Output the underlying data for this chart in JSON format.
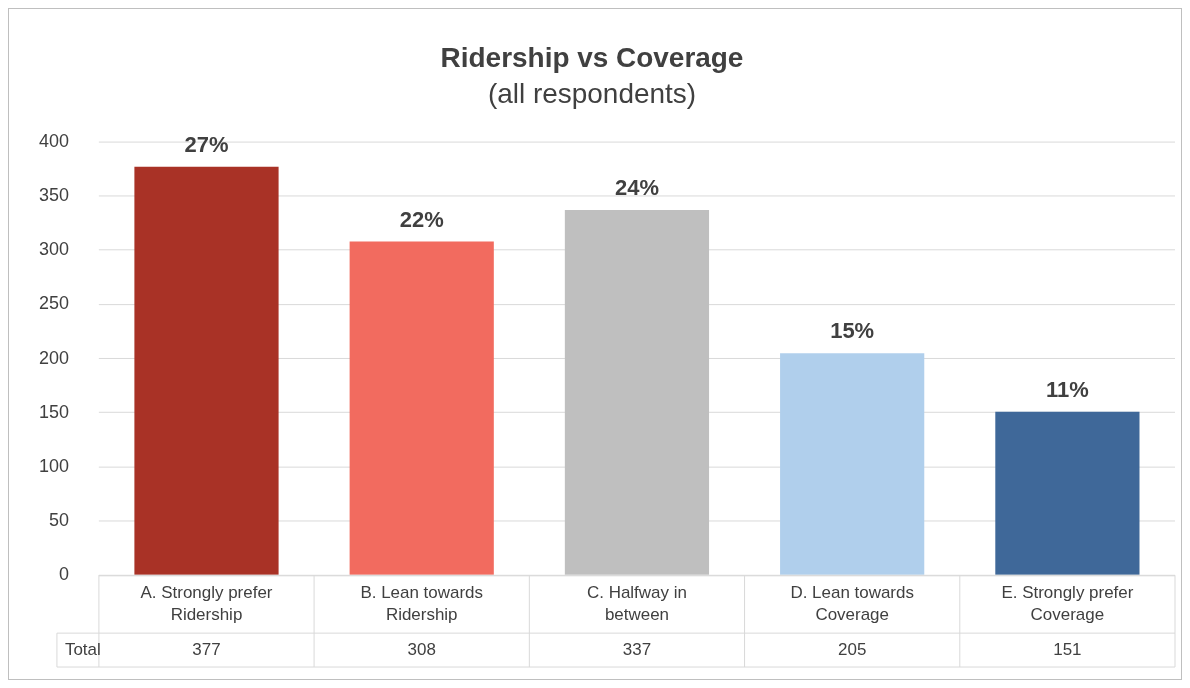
{
  "chart_data": {
    "type": "bar",
    "title": "Ridership vs Coverage",
    "subtitle": "(all respondents)",
    "categories": [
      "A. Strongly prefer Ridership",
      "B. Lean towards Ridership",
      "C. Halfway in between",
      "D. Lean towards Coverage",
      "E. Strongly prefer Coverage"
    ],
    "values": [
      377,
      308,
      337,
      205,
      151
    ],
    "colors": [
      "#a93226",
      "#f26b5f",
      "#bfbfbf",
      "#b0cfec",
      "#3f6899"
    ],
    "value_labels": [
      "377",
      "308",
      "337",
      "205",
      "151"
    ],
    "annotations": [
      "Total",
      {
        "text": "27%",
        "x": "A. Strongly prefer Ridership",
        "y": 377
      },
      {
        "text": "22%",
        "x": "B. Lean towards Ridership",
        "y": 308
      },
      {
        "text": "24%",
        "x": "C. Halfway in between",
        "y": 337
      },
      {
        "text": "15%",
        "x": "D. Lean towards Coverage",
        "y": 205
      },
      {
        "text": "11%",
        "x": "E. Strongly prefer Coverage",
        "y": 151
      }
    ],
    "ylim": [
      0,
      400
    ],
    "yticks": [
      0,
      50,
      100,
      150,
      200,
      250,
      300,
      350,
      400
    ],
    "grid": "y",
    "legend": false
  }
}
